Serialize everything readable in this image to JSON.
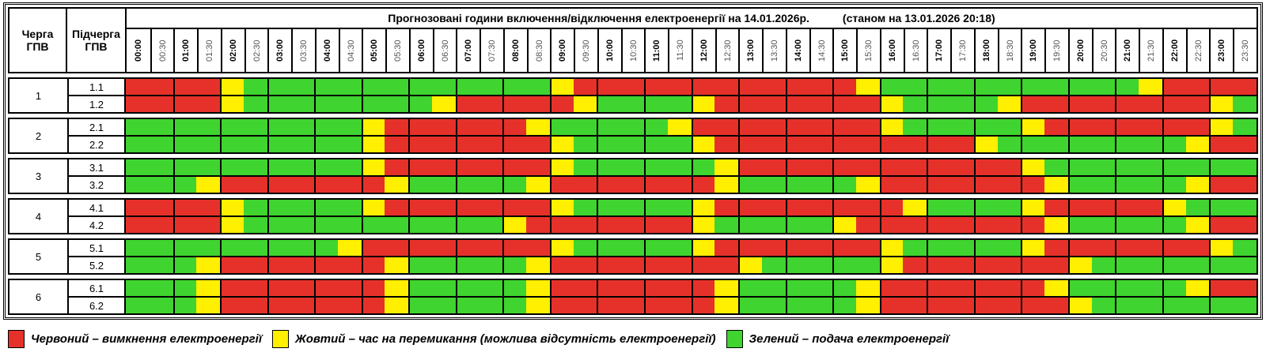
{
  "header": {
    "title": "Прогнозовані години включення/відключення електроенергії на 14.01.2026р.",
    "status": "(станом на 13.01.2026 20:18)",
    "cherga_label": "Черга ГПВ",
    "pidcherga_label": "Підчерга ГПВ"
  },
  "chart_data": {
    "type": "heatmap",
    "title": "Прогнозовані години включення/відключення електроенергії на 14.01.2026р.",
    "status": "(станом на 13.01.2026 20:18)",
    "x_labels": [
      "00:00",
      "00:30",
      "01:00",
      "01:30",
      "02:00",
      "02:30",
      "03:00",
      "03:30",
      "04:00",
      "04:30",
      "05:00",
      "05:30",
      "06:00",
      "06:30",
      "07:00",
      "07:30",
      "08:00",
      "08:30",
      "09:00",
      "09:30",
      "10:00",
      "10:30",
      "11:00",
      "11:30",
      "12:00",
      "12:30",
      "13:00",
      "13:30",
      "14:00",
      "14:30",
      "15:00",
      "15:30",
      "16:00",
      "16:30",
      "17:00",
      "17:30",
      "18:00",
      "18:30",
      "19:00",
      "19:30",
      "20:00",
      "20:30",
      "21:00",
      "21:30",
      "22:00",
      "22:30",
      "23:00",
      "23:30"
    ],
    "cell_legend_note": "R = outage, Y = switching, G = power on; one char per half-hour slot",
    "groups": [
      {
        "queue": "1",
        "rows": [
          {
            "label": "1.1",
            "pattern": "RRRRYGGGGGGGGGGGGGYRRRRRRRRRRRRYGGGGGGGGGGGYRRRR"
          },
          {
            "label": "1.2",
            "pattern": "RRRRYGGGGGGGGYRRRRRYGGGGYRRRRRRRYGGGGYRRRRRRRRYG"
          }
        ]
      },
      {
        "queue": "2",
        "rows": [
          {
            "label": "2.1",
            "pattern": "GGGGGGGGGGYRRRRRRYGGGGGYRRRRRRRRYGGGGGYRRRRRRRYG"
          },
          {
            "label": "2.2",
            "pattern": "GGGGGGGGGGYRRRRRRRYGGGGGYRRRRRRRRRRRYGGGGGGGGYRR"
          }
        ]
      },
      {
        "queue": "3",
        "rows": [
          {
            "label": "3.1",
            "pattern": "GGGGGGGGGGYRRRRRRRYGGGGGGYRRRRRRRRRRRRYGGGGGGGGG"
          },
          {
            "label": "3.2",
            "pattern": "GGGYRRRRRRRYGGGGGYRRRRRRRYGGGGGYRRRRRRRYGGGGGYRR"
          }
        ]
      },
      {
        "queue": "4",
        "rows": [
          {
            "label": "4.1",
            "pattern": "RRRRYGGGGGYRRRRRRRYGGGGGYRRRRRRRRYGGGGYRRRRRYGGG"
          },
          {
            "label": "4.2",
            "pattern": "RRRRYGGGGGGGGGGGYRRRRRRRYGGGGGYRRRRRRRRYGGGGGYRR"
          }
        ]
      },
      {
        "queue": "5",
        "rows": [
          {
            "label": "5.1",
            "pattern": "GGGGGGGGGYRRRRRRRRYGGGGGYRRRRRRRYGGGGGYRRRRRRRYG"
          },
          {
            "label": "5.2",
            "pattern": "GGGYRRRRRRRYGGGGGYRRRRRRRRYGGGGGYRRRRRRRYGGGGGGG"
          }
        ]
      },
      {
        "queue": "6",
        "rows": [
          {
            "label": "6.1",
            "pattern": "GGGYRRRRRRRYGGGGGYRRRRRRRYGGGGGYRRRRRRRYGGGGGYRR"
          },
          {
            "label": "6.2",
            "pattern": "GGGYRRRRRRRYGGGGGYRRRRRRRYGGGGGYRRRRRRRRYGGGGGGG"
          }
        ]
      }
    ],
    "color_map": {
      "R": "#e6312b",
      "Y": "#ffef00",
      "G": "#3fd42f"
    },
    "legend": [
      {
        "key": "R",
        "label": "Червоний – вимкнення електроенергії"
      },
      {
        "key": "Y",
        "label": "Жовтий – час на перемикання (можлива відсутність електроенергії)"
      },
      {
        "key": "G",
        "label": "Зелений – подача електроенергії"
      }
    ]
  }
}
